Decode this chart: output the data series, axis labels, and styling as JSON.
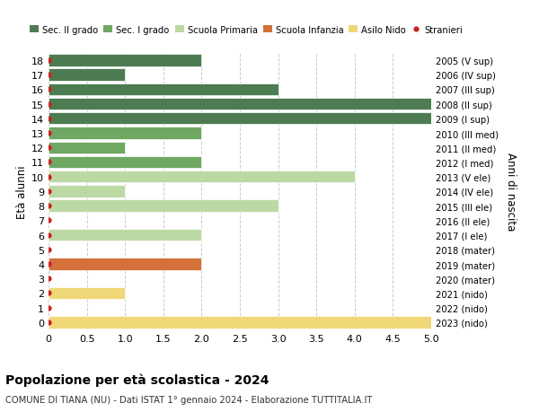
{
  "ages": [
    18,
    17,
    16,
    15,
    14,
    13,
    12,
    11,
    10,
    9,
    8,
    7,
    6,
    5,
    4,
    3,
    2,
    1,
    0
  ],
  "right_labels": [
    "2005 (V sup)",
    "2006 (IV sup)",
    "2007 (III sup)",
    "2008 (II sup)",
    "2009 (I sup)",
    "2010 (III med)",
    "2011 (II med)",
    "2012 (I med)",
    "2013 (V ele)",
    "2014 (IV ele)",
    "2015 (III ele)",
    "2016 (II ele)",
    "2017 (I ele)",
    "2018 (mater)",
    "2019 (mater)",
    "2020 (mater)",
    "2021 (nido)",
    "2022 (nido)",
    "2023 (nido)"
  ],
  "values": [
    2,
    1,
    3,
    5,
    5,
    2,
    1,
    2,
    4,
    1,
    3,
    0,
    2,
    0,
    2,
    0,
    1,
    0,
    5
  ],
  "bar_colors": [
    "#4d7c52",
    "#4d7c52",
    "#4d7c52",
    "#4d7c52",
    "#4d7c52",
    "#6fa863",
    "#6fa863",
    "#6fa863",
    "#bdd9a3",
    "#bdd9a3",
    "#bdd9a3",
    "#bdd9a3",
    "#bdd9a3",
    "#d4713a",
    "#d4713a",
    "#d4713a",
    "#f0d878",
    "#f0d878",
    "#f0d878"
  ],
  "stranieri_color": "#cc2222",
  "legend_labels": [
    "Sec. II grado",
    "Sec. I grado",
    "Scuola Primaria",
    "Scuola Infanzia",
    "Asilo Nido",
    "Stranieri"
  ],
  "legend_colors": [
    "#4d7c52",
    "#6fa863",
    "#bdd9a3",
    "#d4713a",
    "#f0d878",
    "#cc2222"
  ],
  "ylabel_left": "Età alunni",
  "ylabel_right": "Anni di nascita",
  "xlim": [
    0,
    5.0
  ],
  "xticks": [
    0,
    0.5,
    1.0,
    1.5,
    2.0,
    2.5,
    3.0,
    3.5,
    4.0,
    4.5,
    5.0
  ],
  "xtick_labels": [
    "0",
    "0.5",
    "1.0",
    "1.5",
    "2.0",
    "2.5",
    "3.0",
    "3.5",
    "4.0",
    "4.5",
    "5.0"
  ],
  "title": "Popolazione per età scolastica - 2024",
  "subtitle": "COMUNE DI TIANA (NU) - Dati ISTAT 1° gennaio 2024 - Elaborazione TUTTITALIA.IT",
  "bg_color": "#ffffff",
  "grid_color": "#cccccc"
}
